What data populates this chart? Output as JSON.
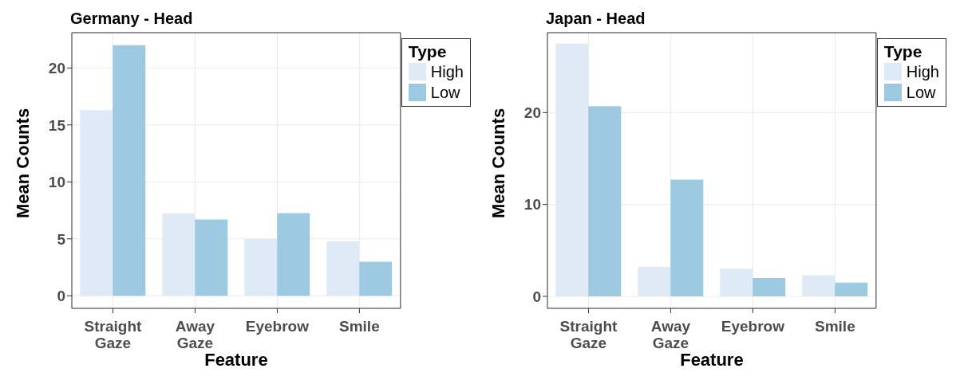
{
  "chart_data": [
    {
      "type": "bar",
      "title": "Germany - Head",
      "xlabel": "Feature",
      "ylabel": "Mean Counts",
      "legend_title": "Type",
      "categories": [
        "Straight Gaze",
        "Away Gaze",
        "Eyebrow",
        "Smile"
      ],
      "series": [
        {
          "name": "High",
          "color": "#deebf7",
          "values": [
            16.3,
            7.25,
            5.0,
            4.8
          ]
        },
        {
          "name": "Low",
          "color": "#9ecae1",
          "values": [
            22.0,
            6.7,
            7.25,
            3.0
          ]
        }
      ],
      "ylim": [
        -1.1,
        23.1
      ],
      "yticks": [
        0,
        5,
        10,
        15,
        20
      ],
      "grid": true,
      "legend": "top right"
    },
    {
      "type": "bar",
      "title": "Japan - Head",
      "xlabel": "Feature",
      "ylabel": "Mean Counts",
      "legend_title": "Type",
      "categories": [
        "Straight Gaze",
        "Away Gaze",
        "Eyebrow",
        "Smile"
      ],
      "series": [
        {
          "name": "High",
          "color": "#deebf7",
          "values": [
            27.5,
            3.2,
            3.0,
            2.3
          ]
        },
        {
          "name": "Low",
          "color": "#9ecae1",
          "values": [
            20.7,
            12.7,
            2.0,
            1.5
          ]
        }
      ],
      "ylim": [
        -1.3,
        28.7
      ],
      "yticks": [
        0,
        10,
        20
      ],
      "grid": true,
      "legend": "top right"
    }
  ]
}
